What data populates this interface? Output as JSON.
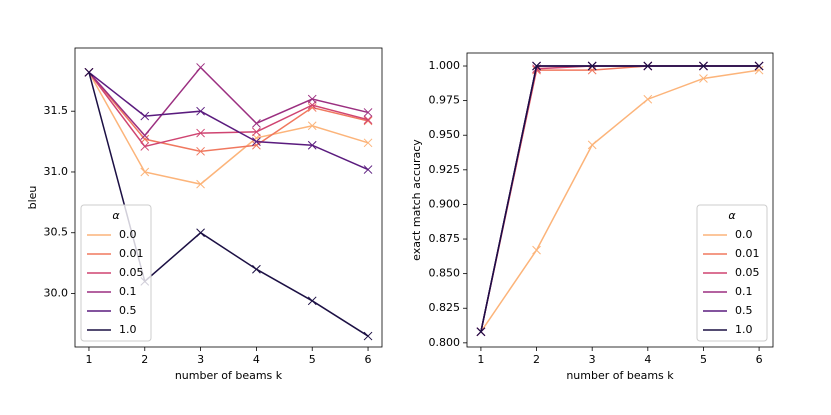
{
  "chart_data": [
    {
      "type": "line",
      "xlabel": "number of beams k",
      "ylabel": "bleu",
      "x": [
        1,
        2,
        3,
        4,
        5,
        6
      ],
      "xlim": [
        0.75,
        6.25
      ],
      "xticks": [
        1,
        2,
        3,
        4,
        5,
        6
      ],
      "ylim": [
        29.56,
        32.02
      ],
      "yticks": [
        {
          "value": 30.0,
          "label": "30.0"
        },
        30.5,
        {
          "value": 31.0,
          "label": "31.0"
        },
        31.5
      ],
      "legend_title": "α",
      "legend": "lower left",
      "marker": "x",
      "series": [
        {
          "name": "0.0",
          "color": "#fcb47a",
          "values": [
            31.82,
            31.0,
            30.9,
            31.28,
            31.38,
            31.24
          ]
        },
        {
          "name": "0.01",
          "color": "#f0785f",
          "values": [
            31.82,
            31.27,
            31.17,
            31.22,
            31.53,
            31.42
          ]
        },
        {
          "name": "0.05",
          "color": "#cf4471",
          "values": [
            31.82,
            31.21,
            31.32,
            31.33,
            31.55,
            31.43
          ]
        },
        {
          "name": "0.1",
          "color": "#9b2f80",
          "values": [
            31.82,
            31.3,
            31.86,
            31.4,
            31.6,
            31.49
          ]
        },
        {
          "name": "0.5",
          "color": "#5a1b7e",
          "values": [
            31.82,
            31.46,
            31.5,
            31.25,
            31.22,
            31.02
          ]
        },
        {
          "name": "1.0",
          "color": "#1c1044",
          "values": [
            31.82,
            30.1,
            30.5,
            30.2,
            29.94,
            29.65
          ]
        }
      ]
    },
    {
      "type": "line",
      "xlabel": "number of beams k",
      "ylabel": "exact match accuracy",
      "x": [
        1,
        2,
        3,
        4,
        5,
        6
      ],
      "xlim": [
        0.75,
        6.25
      ],
      "xticks": [
        1,
        2,
        3,
        4,
        5,
        6
      ],
      "ylim": [
        0.797,
        1.0094
      ],
      "yticks": [
        {
          "value": 0.8,
          "label": "0.800"
        },
        {
          "value": 0.825,
          "label": "0.825"
        },
        {
          "value": 0.85,
          "label": "0.850"
        },
        {
          "value": 0.875,
          "label": "0.875"
        },
        {
          "value": 0.9,
          "label": "0.900"
        },
        {
          "value": 0.925,
          "label": "0.925"
        },
        {
          "value": 0.95,
          "label": "0.950"
        },
        {
          "value": 0.975,
          "label": "0.975"
        },
        {
          "value": 1.0,
          "label": "1.000"
        }
      ],
      "legend_title": "α",
      "legend": "lower right",
      "marker": "x",
      "series": [
        {
          "name": "0.0",
          "color": "#fcb47a",
          "values": [
            0.808,
            0.867,
            0.943,
            0.976,
            0.991,
            0.997
          ]
        },
        {
          "name": "0.01",
          "color": "#f0785f",
          "values": [
            0.808,
            0.997,
            0.997,
            1.0,
            1.0,
            1.0
          ]
        },
        {
          "name": "0.05",
          "color": "#cf4471",
          "values": [
            0.808,
            0.998,
            1.0,
            1.0,
            1.0,
            1.0
          ]
        },
        {
          "name": "0.1",
          "color": "#9b2f80",
          "values": [
            0.808,
            1.0,
            1.0,
            1.0,
            1.0,
            1.0
          ]
        },
        {
          "name": "0.5",
          "color": "#5a1b7e",
          "values": [
            0.808,
            1.0,
            1.0,
            1.0,
            1.0,
            1.0
          ]
        },
        {
          "name": "1.0",
          "color": "#1c1044",
          "values": [
            0.808,
            1.0,
            1.0,
            1.0,
            1.0,
            1.0
          ]
        }
      ]
    }
  ]
}
